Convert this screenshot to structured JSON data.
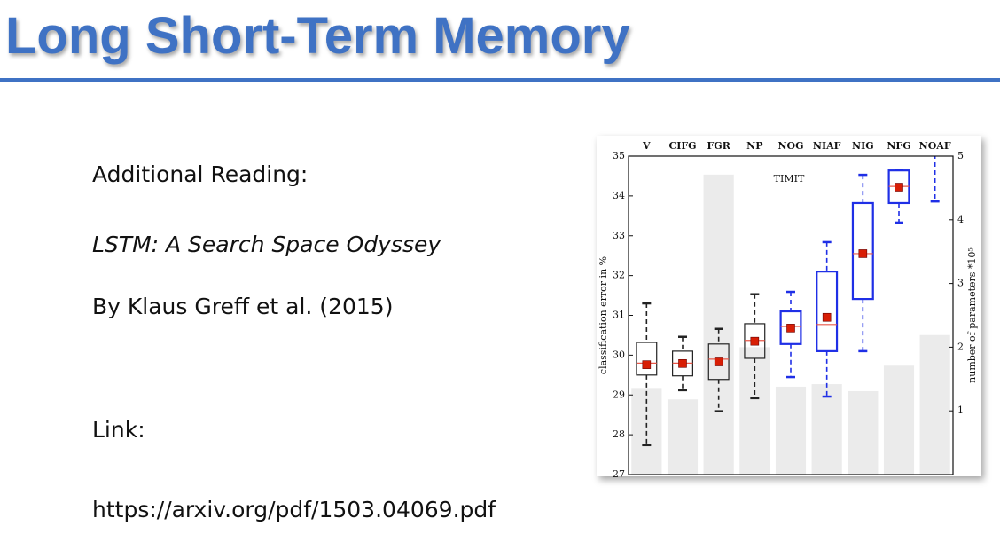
{
  "slide": {
    "title": "Long Short-Term Memory",
    "lines": [
      "Additional Reading:",
      "LSTM: A Search Space Odyssey",
      "By Klaus Greff et al. (2015)",
      "Link:",
      "https://arxiv.org/pdf/1503.04069.pdf"
    ]
  },
  "chart_data": {
    "type": "box",
    "annotation": "TIMIT",
    "y_label": "classification error in %",
    "y2_label": "number of parameters *10⁵",
    "categories": [
      "V",
      "CIFG",
      "FGR",
      "NP",
      "NOG",
      "NIAF",
      "NIG",
      "NFG",
      "NOAF"
    ],
    "ylim": [
      27,
      35
    ],
    "yticks": [
      27,
      28,
      29,
      30,
      31,
      32,
      33,
      34,
      35
    ],
    "y2lim": [
      0,
      5
    ],
    "y2ticks": [
      1,
      2,
      3,
      4,
      5
    ],
    "boxes": [
      {
        "whisker_low": 27.74,
        "q1": 29.5,
        "median": 29.8,
        "q3": 30.32,
        "whisker_high": 31.3,
        "mean": 29.76,
        "color": "#222222"
      },
      {
        "whisker_low": 29.12,
        "q1": 29.48,
        "median": 29.8,
        "q3": 30.1,
        "whisker_high": 30.46,
        "mean": 29.79,
        "color": "#222222"
      },
      {
        "whisker_low": 28.59,
        "q1": 29.39,
        "median": 29.9,
        "q3": 30.28,
        "whisker_high": 30.66,
        "mean": 29.83,
        "color": "#222222"
      },
      {
        "whisker_low": 28.92,
        "q1": 29.92,
        "median": 30.37,
        "q3": 30.79,
        "whisker_high": 31.53,
        "mean": 30.35,
        "color": "#222222"
      },
      {
        "whisker_low": 29.45,
        "q1": 30.28,
        "median": 30.72,
        "q3": 31.1,
        "whisker_high": 31.59,
        "mean": 30.68,
        "color": "#1f2fe6"
      },
      {
        "whisker_low": 28.96,
        "q1": 30.1,
        "median": 30.77,
        "q3": 32.1,
        "whisker_high": 32.84,
        "mean": 30.95,
        "color": "#1f2fe6"
      },
      {
        "whisker_low": 30.1,
        "q1": 31.41,
        "median": 32.55,
        "q3": 33.82,
        "whisker_high": 34.53,
        "mean": 32.55,
        "color": "#1f2fe6"
      },
      {
        "whisker_low": 33.33,
        "q1": 33.82,
        "median": 34.24,
        "q3": 34.64,
        "whisker_high": 34.66,
        "mean": 34.22,
        "color": "#1f2fe6"
      },
      {
        "whisker_low": 33.86,
        "q1": null,
        "median": null,
        "q3": null,
        "whisker_high": null,
        "mean": null,
        "color": "#1f2fe6"
      }
    ],
    "mean_color": "#d81e05",
    "median_color": "#e8584a",
    "series": [
      {
        "axis": "y2",
        "color": "#ebebeb",
        "values": [
          1.36,
          1.18,
          4.71,
          2.0,
          1.38,
          1.42,
          1.31,
          1.71,
          2.19
        ]
      }
    ]
  }
}
